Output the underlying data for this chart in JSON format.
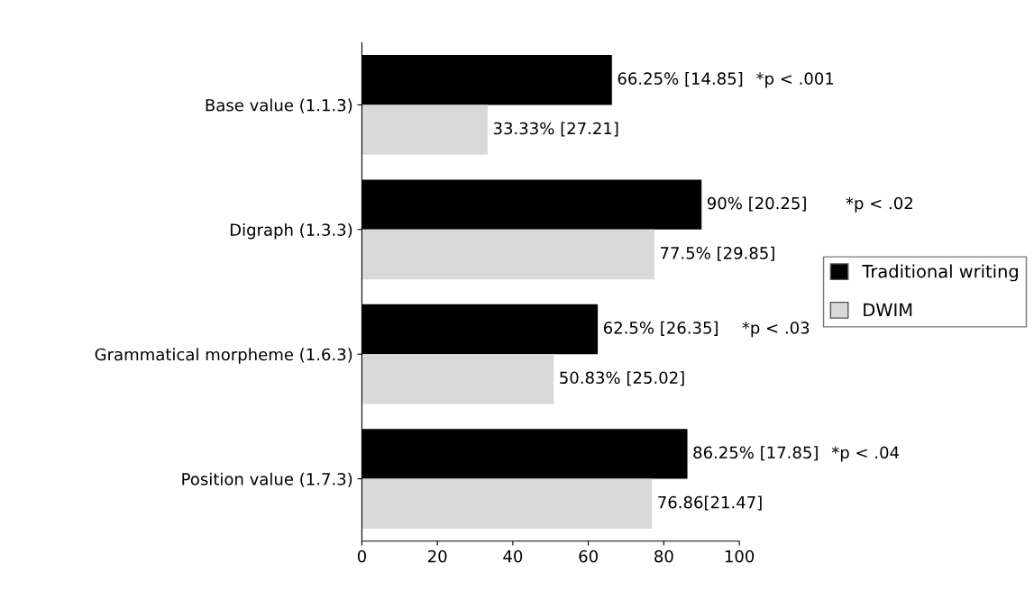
{
  "chart_data": {
    "type": "bar",
    "orientation": "horizontal",
    "categories": [
      "Base value (1.1.3)",
      "Digraph (1.3.3)",
      "Grammatical morpheme (1.6.3)",
      "Position value (1.7.3)"
    ],
    "series": [
      {
        "name": "Traditional writing",
        "color": "#000000",
        "values": [
          66.25,
          90,
          62.5,
          86.25
        ],
        "value_labels": [
          "66.25% [14.85]",
          "90% [20.25]",
          "62.5% [26.35]",
          "86.25% [17.85]"
        ]
      },
      {
        "name": "DWIM",
        "color": "#d9d9d9",
        "values": [
          33.33,
          77.5,
          50.83,
          76.86
        ],
        "value_labels": [
          "33.33% [27.21]",
          "77.5% [29.85]",
          "50.83% [25.02]",
          "76.86[21.47]"
        ]
      }
    ],
    "annotations": [
      "*p < .001",
      "*p < .02",
      "*p < .03",
      "*p < .04"
    ],
    "xlim": [
      0,
      100
    ],
    "xticks": [
      0,
      20,
      40,
      60,
      80,
      100
    ],
    "grid": false,
    "legend": "right"
  }
}
